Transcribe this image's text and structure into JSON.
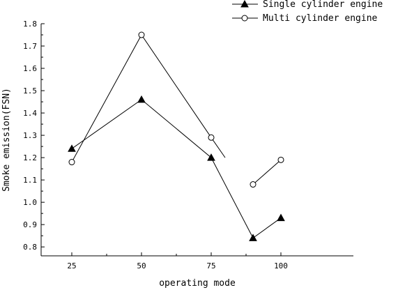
{
  "chart_data": {
    "type": "line",
    "xlabel": "operating mode",
    "ylabel": "Smoke emission(FSN)",
    "x_ticks": [
      25,
      50,
      75,
      100
    ],
    "y_ticks": [
      "0.8",
      "0.9",
      "1.0",
      "1.1",
      "1.2",
      "1.3",
      "1.4",
      "1.5",
      "1.6",
      "1.7",
      "1.8"
    ],
    "xlim": [
      14,
      126
    ],
    "ylim": [
      0.76,
      1.8
    ],
    "grid": false,
    "legend_position": "top-right",
    "series": [
      {
        "name": "Single cylinder engine",
        "marker": "filled-triangle",
        "color": "#000000",
        "segments": [
          [
            [
              25,
              1.24
            ],
            [
              50,
              1.46
            ],
            [
              75,
              1.2
            ],
            [
              90,
              0.84
            ],
            [
              100,
              0.93
            ]
          ]
        ]
      },
      {
        "name": "Multi cylinder engine",
        "marker": "open-circle",
        "color": "#000000",
        "segments": [
          [
            [
              25,
              1.18
            ],
            [
              50,
              1.75
            ],
            [
              75,
              1.29
            ],
            [
              80,
              1.2
            ]
          ],
          [
            [
              90,
              1.08
            ],
            [
              100,
              1.19
            ]
          ]
        ],
        "markers_at": [
          [
            25,
            1.18
          ],
          [
            50,
            1.75
          ],
          [
            75,
            1.29
          ],
          [
            90,
            1.08
          ],
          [
            100,
            1.19
          ]
        ]
      }
    ]
  }
}
